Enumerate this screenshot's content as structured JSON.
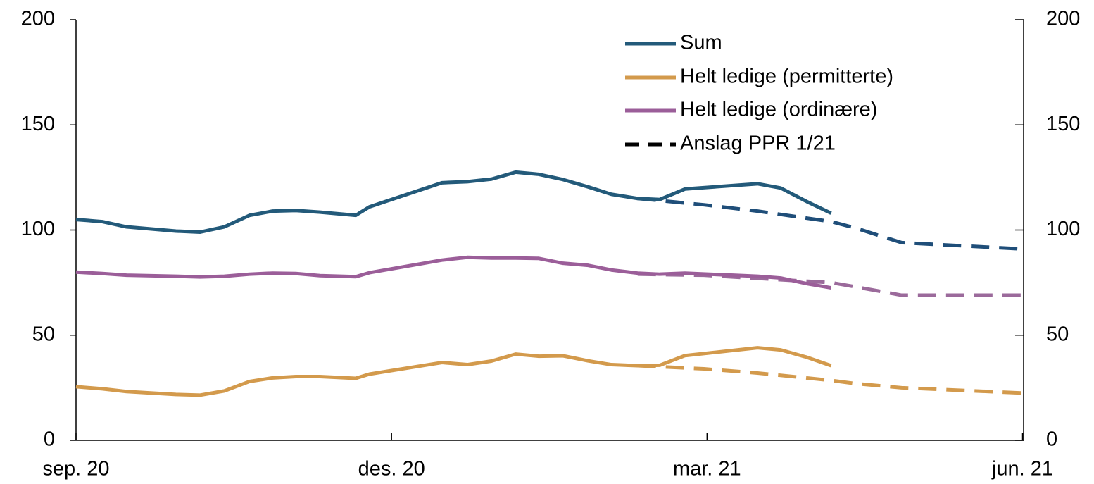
{
  "chart_data": {
    "type": "line",
    "x": [
      0,
      0.25,
      0.48,
      0.95,
      1.18,
      1.41,
      1.65,
      1.87,
      2.09,
      2.32,
      2.66,
      2.79,
      3.48,
      3.72,
      3.95,
      4.18,
      4.4,
      4.63,
      4.87,
      5.09,
      5.34,
      5.55,
      5.79,
      6.48,
      6.7,
      6.95,
      7.18
    ],
    "series": [
      {
        "name": "Sum",
        "color": "#235a7a",
        "values": [
          105,
          104,
          101.5,
          99.5,
          99,
          101.5,
          107,
          109,
          109.3,
          108.5,
          107,
          111,
          122.5,
          123,
          124.2,
          127.5,
          126.5,
          124,
          120.5,
          117,
          115,
          114.5,
          119.5,
          122,
          120,
          113.5,
          108
        ]
      },
      {
        "name": "Helt ledige (permitterte)",
        "color": "#d39a4c",
        "values": [
          25.5,
          24.5,
          23.2,
          21.8,
          21.5,
          23.5,
          28,
          29.7,
          30.3,
          30.3,
          29.5,
          31.5,
          37,
          36,
          37.7,
          41,
          40,
          40.2,
          37.8,
          36,
          35.5,
          35.7,
          40.3,
          44,
          43,
          39.5,
          35.5
        ]
      },
      {
        "name": "Helt ledige (ordinære)",
        "color": "#9b5e99",
        "values": [
          80,
          79.3,
          78.5,
          78,
          77.7,
          78,
          79,
          79.5,
          79.3,
          78.3,
          77.8,
          79.7,
          85.7,
          87,
          86.7,
          86.7,
          86.5,
          84.2,
          83.2,
          81,
          79.5,
          79,
          79.5,
          78,
          77.2,
          74.5,
          72.5
        ]
      }
    ],
    "forecast": {
      "name": "Anslag PPR 1/21",
      "color": "#000000",
      "x": [
        5.34,
        5.97,
        6.48,
        7.18,
        7.41,
        7.85,
        9.0
      ],
      "series": [
        {
          "color": "#1f4e79",
          "values": [
            115,
            112,
            109,
            104,
            101,
            94,
            91
          ]
        },
        {
          "color": "#d39a4c",
          "values": [
            35.5,
            34,
            32,
            28.5,
            27,
            25,
            22.5
          ]
        },
        {
          "color": "#9b6a9b",
          "values": [
            79,
            78.5,
            77,
            75,
            73,
            69,
            69
          ]
        }
      ]
    },
    "xlim": [
      0,
      9.01
    ],
    "xticks": [
      {
        "value": 0,
        "label": "sep. 20"
      },
      {
        "value": 3,
        "label": "des. 20"
      },
      {
        "value": 6,
        "label": "mar. 21"
      },
      {
        "value": 9,
        "label": "jun. 21"
      }
    ],
    "ylim": [
      0,
      200
    ],
    "yticks": [
      0,
      50,
      100,
      150,
      200
    ],
    "y2lim": [
      0,
      200
    ],
    "y2ticks": [
      0,
      50,
      100,
      150,
      200
    ]
  }
}
